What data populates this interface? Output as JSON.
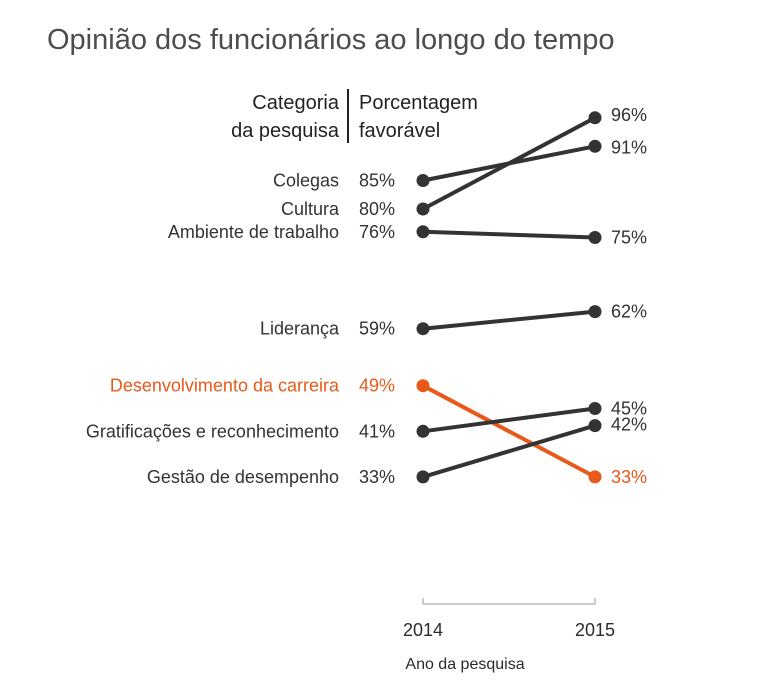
{
  "chart_data": {
    "type": "line",
    "title": "Opinião dos funcionários ao longo do tempo",
    "header": {
      "category_line1": "Categoria",
      "category_line2": "da pesquisa",
      "value_line1": "Porcentagem",
      "value_line2": "favorável"
    },
    "x": [
      "2014",
      "2015"
    ],
    "xlabel": "Ano da pesquisa",
    "ylim": [
      30,
      100
    ],
    "colors": {
      "default": "#333333",
      "highlight": "#e8591a"
    },
    "series": [
      {
        "name": "Colegas",
        "values": [
          85,
          91
        ],
        "labels": [
          "85%",
          "91%"
        ],
        "highlight": false
      },
      {
        "name": "Cultura",
        "values": [
          80,
          96
        ],
        "labels": [
          "80%",
          "96%"
        ],
        "highlight": false
      },
      {
        "name": "Ambiente de trabalho",
        "values": [
          76,
          75
        ],
        "labels": [
          "76%",
          "75%"
        ],
        "highlight": false
      },
      {
        "name": "Liderança",
        "values": [
          59,
          62
        ],
        "labels": [
          "59%",
          "62%"
        ],
        "highlight": false
      },
      {
        "name": "Desenvolvimento da carreira",
        "values": [
          49,
          33
        ],
        "labels": [
          "49%",
          "33%"
        ],
        "highlight": true
      },
      {
        "name": "Gratificações e reconhecimento",
        "values": [
          41,
          45
        ],
        "labels": [
          "41%",
          "45%"
        ],
        "highlight": false
      },
      {
        "name": "Gestão de desempenho",
        "values": [
          33,
          42
        ],
        "labels": [
          "33%",
          "42%"
        ],
        "highlight": false
      }
    ]
  }
}
